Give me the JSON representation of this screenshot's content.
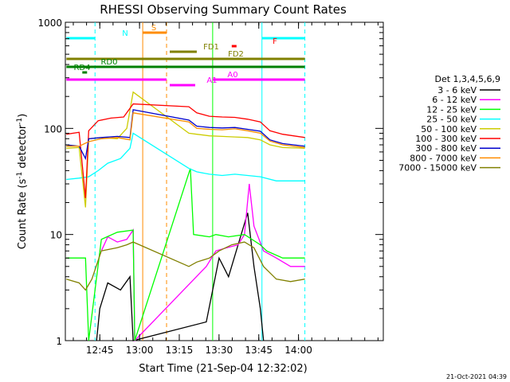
{
  "chart_data": {
    "type": "line",
    "title": "RHESSI Observing Summary Count Rates",
    "xlabel": "Start Time (21-Sep-04 12:32:02)",
    "ylabel_main": "Count Rate (s",
    "ylabel_sup1": "-1",
    "ylabel_mid": " detector",
    "ylabel_sup2": "-1",
    "ylabel_end": ")",
    "yscale": "log",
    "ylim": [
      1,
      1000
    ],
    "xlim_minutes": [
      12.5333,
      14.5333
    ],
    "x_ticks": [
      {
        "label": "12:45",
        "value": 12.75
      },
      {
        "label": "13:00",
        "value": 13.0
      },
      {
        "label": "13:15",
        "value": 13.25
      },
      {
        "label": "13:30",
        "value": 13.5
      },
      {
        "label": "13:45",
        "value": 13.75
      },
      {
        "label": "14:00",
        "value": 14.0
      }
    ],
    "y_ticks": [
      {
        "label": "1",
        "value": 1
      },
      {
        "label": "10",
        "value": 10
      },
      {
        "label": "100",
        "value": 100
      },
      {
        "label": "1000",
        "value": 1000
      }
    ],
    "legend_title": "Det 1,3,4,5,6,9",
    "timestamp": "21-Oct-2021 04:39",
    "series": [
      {
        "name": "3 - 6 keV",
        "color": "#000000",
        "points": [
          [
            12.54,
            null
          ],
          [
            12.69,
            null
          ],
          [
            12.73,
            1.0
          ],
          [
            12.75,
            2.0
          ],
          [
            12.8,
            3.5
          ],
          [
            12.88,
            3.0
          ],
          [
            12.94,
            4.0
          ],
          [
            12.96,
            1.0
          ],
          [
            13.42,
            1.5
          ],
          [
            13.46,
            3.0
          ],
          [
            13.5,
            6.0
          ],
          [
            13.56,
            4.0
          ],
          [
            13.62,
            8.0
          ],
          [
            13.68,
            16.0
          ],
          [
            13.72,
            5.0
          ],
          [
            13.76,
            2.0
          ],
          [
            13.78,
            1.0
          ]
        ]
      },
      {
        "name": "6 - 12 keV",
        "color": "#ff00ff",
        "points": [
          [
            12.76,
            7.0
          ],
          [
            12.8,
            9.5
          ],
          [
            12.86,
            8.5
          ],
          [
            12.92,
            9.0
          ],
          [
            12.96,
            11.0
          ],
          [
            12.97,
            1.0
          ],
          [
            13.42,
            5.0
          ],
          [
            13.48,
            7.0
          ],
          [
            13.55,
            7.5
          ],
          [
            13.62,
            8.0
          ],
          [
            13.66,
            10.0
          ],
          [
            13.69,
            30.0
          ],
          [
            13.72,
            12.0
          ],
          [
            13.78,
            7.0
          ],
          [
            13.86,
            6.0
          ],
          [
            13.95,
            5.0
          ],
          [
            14.04,
            5.0
          ]
        ]
      },
      {
        "name": "12 - 25 keV",
        "color": "#00ff00",
        "points": [
          [
            12.54,
            6.0
          ],
          [
            12.66,
            6.0
          ],
          [
            12.68,
            1.0
          ],
          [
            12.76,
            9.0
          ],
          [
            12.86,
            10.5
          ],
          [
            12.96,
            11.0
          ],
          [
            12.97,
            1.0
          ],
          [
            13.32,
            42.0
          ],
          [
            13.34,
            10.0
          ],
          [
            13.44,
            9.5
          ],
          [
            13.48,
            10.0
          ],
          [
            13.56,
            9.5
          ],
          [
            13.66,
            10.0
          ],
          [
            13.76,
            8.0
          ],
          [
            13.8,
            7.0
          ],
          [
            13.9,
            6.0
          ],
          [
            14.04,
            6.0
          ]
        ]
      },
      {
        "name": "25 - 50 keV",
        "color": "#00ffff",
        "points": [
          [
            12.54,
            33.0
          ],
          [
            12.62,
            34.0
          ],
          [
            12.68,
            35.0
          ],
          [
            12.74,
            40.0
          ],
          [
            12.8,
            47.0
          ],
          [
            12.88,
            52.0
          ],
          [
            12.94,
            65.0
          ],
          [
            12.96,
            90.0
          ],
          [
            13.31,
            42.0
          ],
          [
            13.36,
            39.0
          ],
          [
            13.44,
            37.0
          ],
          [
            13.52,
            36.0
          ],
          [
            13.6,
            37.0
          ],
          [
            13.68,
            36.0
          ],
          [
            13.76,
            35.0
          ],
          [
            13.86,
            32.0
          ],
          [
            13.94,
            32.0
          ],
          [
            14.04,
            32.0
          ]
        ]
      },
      {
        "name": "50 - 100 keV",
        "color": "#cccc00",
        "points": [
          [
            12.54,
            65.0
          ],
          [
            12.62,
            66.0
          ],
          [
            12.66,
            18.0
          ],
          [
            12.68,
            80.0
          ],
          [
            12.76,
            82.0
          ],
          [
            12.86,
            80.0
          ],
          [
            12.92,
            100.0
          ],
          [
            12.96,
            220.0
          ],
          [
            13.31,
            90.0
          ],
          [
            13.36,
            88.0
          ],
          [
            13.44,
            85.0
          ],
          [
            13.52,
            84.0
          ],
          [
            13.6,
            83.0
          ],
          [
            13.68,
            82.0
          ],
          [
            13.76,
            78.0
          ],
          [
            13.82,
            70.0
          ],
          [
            13.9,
            66.0
          ],
          [
            14.04,
            65.0
          ]
        ]
      },
      {
        "name": "100 - 300 keV",
        "color": "#ff0000",
        "points": [
          [
            12.54,
            88.0
          ],
          [
            12.62,
            92.0
          ],
          [
            12.66,
            22.0
          ],
          [
            12.68,
            95.0
          ],
          [
            12.74,
            118.0
          ],
          [
            12.82,
            125.0
          ],
          [
            12.9,
            128.0
          ],
          [
            12.96,
            170.0
          ],
          [
            13.31,
            160.0
          ],
          [
            13.36,
            140.0
          ],
          [
            13.44,
            130.0
          ],
          [
            13.52,
            128.0
          ],
          [
            13.6,
            127.0
          ],
          [
            13.68,
            122.0
          ],
          [
            13.76,
            115.0
          ],
          [
            13.82,
            95.0
          ],
          [
            13.9,
            88.0
          ],
          [
            14.04,
            82.0
          ]
        ]
      },
      {
        "name": "300 - 800 keV",
        "color": "#0000cc",
        "points": [
          [
            12.54,
            70.0
          ],
          [
            12.62,
            68.0
          ],
          [
            12.66,
            52.0
          ],
          [
            12.68,
            80.0
          ],
          [
            12.76,
            82.0
          ],
          [
            12.86,
            84.0
          ],
          [
            12.94,
            82.0
          ],
          [
            12.96,
            150.0
          ],
          [
            13.31,
            120.0
          ],
          [
            13.36,
            105.0
          ],
          [
            13.44,
            102.0
          ],
          [
            13.52,
            101.0
          ],
          [
            13.6,
            102.0
          ],
          [
            13.68,
            98.0
          ],
          [
            13.76,
            94.0
          ],
          [
            13.82,
            78.0
          ],
          [
            13.9,
            72.0
          ],
          [
            14.04,
            68.0
          ]
        ]
      },
      {
        "name": "800 - 7000 keV",
        "color": "#ff8c00",
        "points": [
          [
            12.54,
            68.0
          ],
          [
            12.62,
            68.0
          ],
          [
            12.68,
            75.0
          ],
          [
            12.76,
            80.0
          ],
          [
            12.86,
            82.0
          ],
          [
            12.94,
            78.0
          ],
          [
            12.96,
            140.0
          ],
          [
            13.31,
            115.0
          ],
          [
            13.36,
            100.0
          ],
          [
            13.44,
            98.0
          ],
          [
            13.52,
            97.0
          ],
          [
            13.6,
            99.0
          ],
          [
            13.68,
            95.0
          ],
          [
            13.76,
            90.0
          ],
          [
            13.82,
            76.0
          ],
          [
            13.9,
            70.0
          ],
          [
            14.04,
            66.0
          ]
        ]
      },
      {
        "name": "7000 - 15000 keV",
        "color": "#808000",
        "points": [
          [
            12.54,
            3.8
          ],
          [
            12.62,
            3.5
          ],
          [
            12.66,
            3.0
          ],
          [
            12.7,
            3.8
          ],
          [
            12.76,
            7.0
          ],
          [
            12.86,
            7.5
          ],
          [
            12.92,
            8.0
          ],
          [
            12.96,
            8.5
          ],
          [
            13.31,
            5.0
          ],
          [
            13.36,
            5.5
          ],
          [
            13.44,
            6.0
          ],
          [
            13.5,
            7.0
          ],
          [
            13.58,
            8.0
          ],
          [
            13.66,
            8.5
          ],
          [
            13.72,
            7.5
          ],
          [
            13.78,
            5.0
          ],
          [
            13.86,
            3.8
          ],
          [
            13.95,
            3.6
          ],
          [
            14.04,
            3.8
          ]
        ]
      }
    ],
    "flag_bars": [
      {
        "label": "N",
        "color": "#00ffff",
        "segments": [
          [
            12.54,
            12.72
          ],
          [
            13.77,
            14.04
          ]
        ]
      },
      {
        "label": "S",
        "color": "#ff8c00",
        "segments": [
          [
            13.02,
            13.17
          ]
        ]
      },
      {
        "label": "F",
        "color": "#ff0000",
        "segments": [
          [
            13.58,
            13.61
          ]
        ]
      },
      {
        "label": "FD1",
        "color": "#808000",
        "segments": [
          [
            13.19,
            13.36
          ]
        ]
      },
      {
        "label": "FD2",
        "color": "#808000",
        "segments": [
          [
            12.54,
            14.04
          ]
        ]
      },
      {
        "label": "RD0",
        "color": "#008000",
        "segments": [
          [
            12.54,
            14.04
          ]
        ]
      },
      {
        "label": "RD4",
        "color": "#008000",
        "segments": [
          [
            12.64,
            12.67
          ]
        ]
      },
      {
        "label": "A0",
        "color": "#ff00ff",
        "segments": [
          [
            12.54,
            13.17
          ],
          [
            13.46,
            14.04
          ]
        ]
      },
      {
        "label": "A1",
        "color": "#ff00ff",
        "segments": [
          [
            13.19,
            13.35
          ]
        ]
      }
    ],
    "markers": [
      {
        "color": "#00ffff",
        "x": 12.72,
        "style": "dashed"
      },
      {
        "color": "#ff8c00",
        "x": 13.02,
        "style": "solid"
      },
      {
        "color": "#ff8c00",
        "x": 13.17,
        "style": "dashed"
      },
      {
        "color": "#00ff00",
        "x": 13.46,
        "style": "solid"
      },
      {
        "color": "#00ffff",
        "x": 13.77,
        "style": "solid"
      },
      {
        "color": "#00ffff",
        "x": 14.04,
        "style": "dashed"
      }
    ]
  }
}
